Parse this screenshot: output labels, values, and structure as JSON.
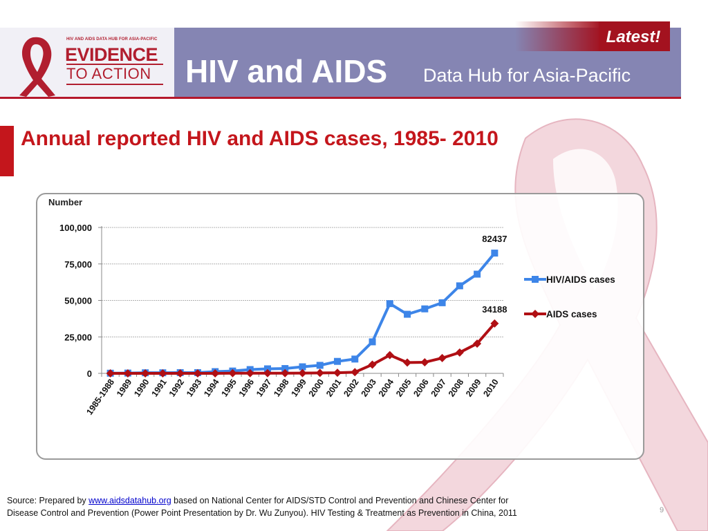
{
  "banner": {
    "logo_tag": "HIV AND AIDS DATA HUB FOR ASIA-PACIFIC",
    "logo_line1": "EVIDENCE",
    "logo_line2": "TO ACTION",
    "title": "HIV and AIDS",
    "subtitle": "Data Hub for Asia-Pacific",
    "latest_label": "Latest!"
  },
  "slide_title": "Annual reported HIV and AIDS cases, 1985- 2010",
  "source": {
    "prefix": "Source: Prepared by ",
    "link": "www.aidsdatahub.org",
    "suffix": "  based on National Center for AIDS/STD Control and Prevention and Chinese Center for",
    "line2": "Disease Control and Prevention (Power Point Presentation by Dr. Wu Zunyou).  HIV Testing & Treatment as Prevention in China, 2011"
  },
  "page_number": "9",
  "colors": {
    "banner": "#8585b3",
    "accent_red": "#c4161c",
    "hiv_series": "#3d85e8",
    "aids_series": "#b00f14"
  },
  "chart_data": {
    "type": "line",
    "title": "",
    "ylabel": "Number",
    "xlabel": "",
    "ylim": [
      0,
      100000
    ],
    "yticks": [
      0,
      25000,
      50000,
      75000,
      100000
    ],
    "ytick_labels": [
      "0",
      "25,000",
      "50,000",
      "75,000",
      "100,000"
    ],
    "grid": true,
    "legend_position": "right",
    "categories": [
      "1985-1988",
      "1989",
      "1990",
      "1991",
      "1992",
      "1993",
      "1994",
      "1995",
      "1996",
      "1997",
      "1998",
      "1999",
      "2000",
      "2001",
      "2002",
      "2003",
      "2004",
      "2005",
      "2006",
      "2007",
      "2008",
      "2009",
      "2010"
    ],
    "series": [
      {
        "name": "HIV/AIDS cases",
        "color": "#3d85e8",
        "marker": "square",
        "values": [
          100,
          200,
          400,
          400,
          500,
          500,
          1200,
          1600,
          2600,
          3100,
          3300,
          4500,
          5500,
          8200,
          9800,
          21600,
          47800,
          40500,
          44200,
          48400,
          60000,
          68000,
          82437
        ]
      },
      {
        "name": "AIDS cases",
        "color": "#b00f14",
        "marker": "diamond",
        "values": [
          0,
          0,
          0,
          0,
          0,
          0,
          0,
          100,
          100,
          100,
          100,
          200,
          300,
          400,
          800,
          6000,
          12500,
          7400,
          7600,
          10500,
          14300,
          20400,
          34188
        ]
      }
    ],
    "data_labels": [
      {
        "series": "HIV/AIDS cases",
        "category": "2010",
        "text": "82437"
      },
      {
        "series": "AIDS cases",
        "category": "2010",
        "text": "34188"
      }
    ]
  }
}
